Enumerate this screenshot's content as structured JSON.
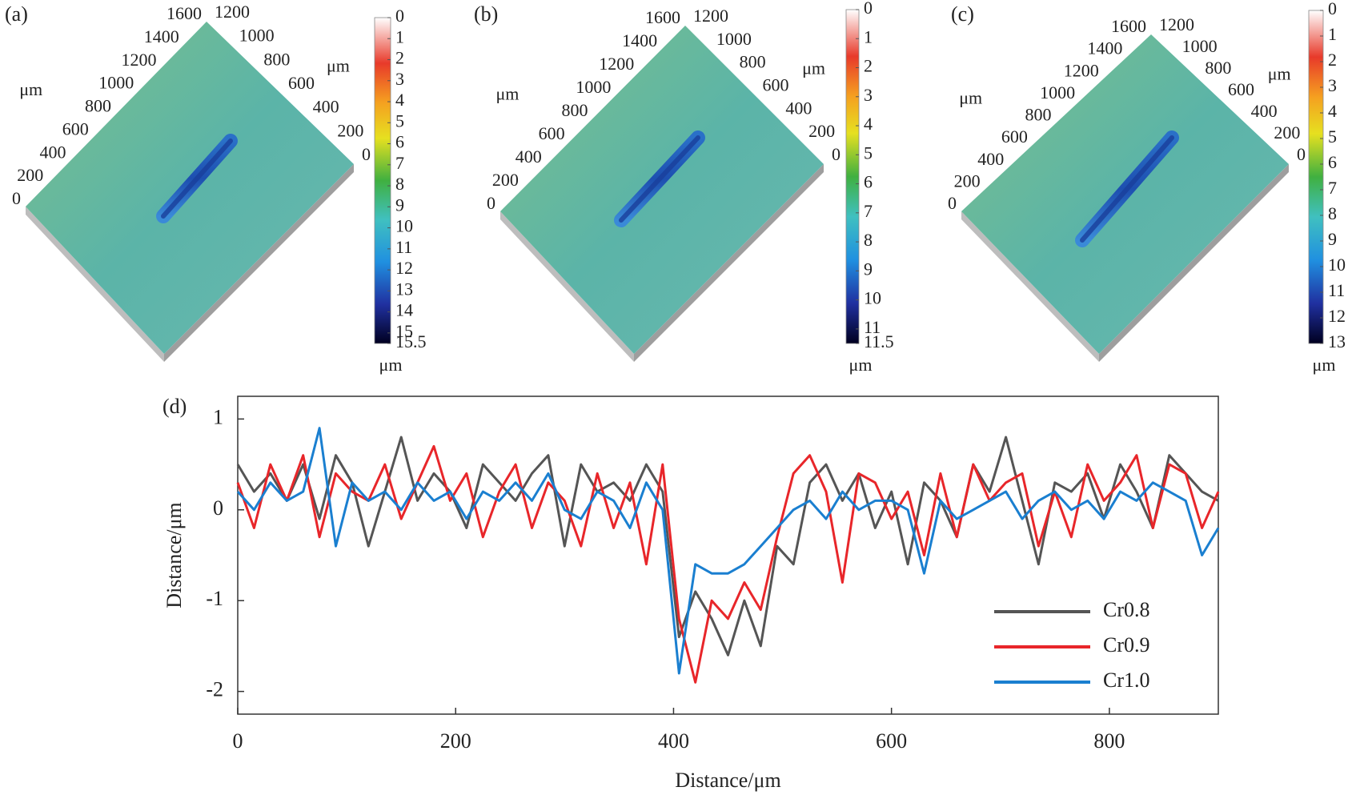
{
  "chart_data": [
    {
      "type": "surface",
      "panel_label": "(a)",
      "xlabel": "μm",
      "ylabel": "μm",
      "colorbar_label": "μm",
      "xlim": [
        0,
        1600
      ],
      "xticks": [
        0,
        200,
        400,
        600,
        800,
        1000,
        1200,
        1400,
        1600
      ],
      "ylim": [
        0,
        1200
      ],
      "yticks": [
        0,
        200,
        400,
        600,
        800,
        1000,
        1200
      ],
      "clim": [
        0,
        15.5
      ],
      "cticks": [
        0,
        1,
        2,
        3,
        4,
        5,
        6,
        7,
        8,
        9,
        10,
        11,
        12,
        13,
        14,
        15,
        15.5
      ]
    },
    {
      "type": "surface",
      "panel_label": "(b)",
      "xlabel": "μm",
      "ylabel": "μm",
      "colorbar_label": "μm",
      "xlim": [
        0,
        1600
      ],
      "xticks": [
        0,
        200,
        400,
        600,
        800,
        1000,
        1200,
        1400,
        1600
      ],
      "ylim": [
        0,
        1200
      ],
      "yticks": [
        0,
        200,
        400,
        600,
        800,
        1000,
        1200
      ],
      "clim": [
        0,
        11.5
      ],
      "cticks": [
        0,
        1,
        2,
        3,
        4,
        5,
        6,
        7,
        8,
        9,
        10,
        11,
        11.5
      ]
    },
    {
      "type": "surface",
      "panel_label": "(c)",
      "xlabel": "μm",
      "ylabel": "μm",
      "colorbar_label": "μm",
      "xlim": [
        0,
        1600
      ],
      "xticks": [
        0,
        200,
        400,
        600,
        800,
        1000,
        1200,
        1400,
        1600
      ],
      "ylim": [
        0,
        1200
      ],
      "yticks": [
        0,
        200,
        400,
        600,
        800,
        1000,
        1200
      ],
      "clim": [
        0,
        13
      ],
      "cticks": [
        0,
        1,
        2,
        3,
        4,
        5,
        6,
        7,
        8,
        9,
        10,
        11,
        12,
        13
      ]
    },
    {
      "type": "line",
      "panel_label": "(d)",
      "xlabel": "Distance/μm",
      "ylabel": "Distance/μm",
      "xlim": [
        0,
        900
      ],
      "xticks": [
        0,
        200,
        400,
        600,
        800
      ],
      "ylim": [
        -2.25,
        1.25
      ],
      "yticks": [
        -2,
        -1,
        0,
        1
      ],
      "legend": "lower right",
      "x": [
        0,
        15,
        30,
        45,
        60,
        75,
        90,
        105,
        120,
        135,
        150,
        165,
        180,
        195,
        210,
        225,
        240,
        255,
        270,
        285,
        300,
        315,
        330,
        345,
        360,
        375,
        390,
        405,
        420,
        435,
        450,
        465,
        480,
        495,
        510,
        525,
        540,
        555,
        570,
        585,
        600,
        615,
        630,
        645,
        660,
        675,
        690,
        705,
        720,
        735,
        750,
        765,
        780,
        795,
        810,
        825,
        840,
        855,
        870,
        885,
        900
      ],
      "series": [
        {
          "name": "Cr0.8",
          "color": "#555555",
          "values": [
            0.5,
            0.2,
            0.4,
            0.1,
            0.5,
            -0.1,
            0.6,
            0.3,
            -0.4,
            0.2,
            0.8,
            0.1,
            0.4,
            0.2,
            -0.2,
            0.5,
            0.3,
            0.1,
            0.4,
            0.6,
            -0.4,
            0.5,
            0.2,
            0.3,
            0.1,
            0.5,
            0.2,
            -1.4,
            -0.9,
            -1.2,
            -1.6,
            -1.0,
            -1.5,
            -0.4,
            -0.6,
            0.3,
            0.5,
            0.1,
            0.4,
            -0.2,
            0.2,
            -0.6,
            0.3,
            0.1,
            -0.3,
            0.5,
            0.2,
            0.8,
            0.1,
            -0.6,
            0.3,
            0.2,
            0.4,
            -0.1,
            0.5,
            0.2,
            -0.2,
            0.6,
            0.4,
            0.2,
            0.1
          ]
        },
        {
          "name": "Cr0.9",
          "color": "#e8262a",
          "values": [
            0.3,
            -0.2,
            0.5,
            0.1,
            0.6,
            -0.3,
            0.4,
            0.2,
            0.1,
            0.5,
            -0.1,
            0.3,
            0.7,
            0.1,
            0.4,
            -0.3,
            0.2,
            0.5,
            -0.2,
            0.3,
            0.1,
            -0.4,
            0.4,
            -0.2,
            0.3,
            -0.6,
            0.5,
            -1.2,
            -1.9,
            -1.0,
            -1.2,
            -0.8,
            -1.1,
            -0.3,
            0.4,
            0.6,
            0.2,
            -0.8,
            0.4,
            0.3,
            -0.1,
            0.2,
            -0.5,
            0.4,
            -0.3,
            0.5,
            0.1,
            0.3,
            0.4,
            -0.4,
            0.2,
            -0.3,
            0.5,
            0.1,
            0.3,
            0.6,
            -0.2,
            0.5,
            0.4,
            -0.2,
            0.2
          ]
        },
        {
          "name": "Cr1.0",
          "color": "#1a7fd0",
          "values": [
            0.2,
            0.0,
            0.3,
            0.1,
            0.2,
            0.9,
            -0.4,
            0.3,
            0.1,
            0.2,
            0.0,
            0.3,
            0.1,
            0.2,
            -0.1,
            0.2,
            0.1,
            0.3,
            0.1,
            0.4,
            0.0,
            -0.1,
            0.2,
            0.1,
            -0.2,
            0.3,
            0.0,
            -1.8,
            -0.6,
            -0.7,
            -0.7,
            -0.6,
            -0.4,
            -0.2,
            0.0,
            0.1,
            -0.1,
            0.2,
            0.0,
            0.1,
            0.1,
            0.0,
            -0.7,
            0.1,
            -0.1,
            0.0,
            0.1,
            0.2,
            -0.1,
            0.1,
            0.2,
            0.0,
            0.1,
            -0.1,
            0.2,
            0.1,
            0.3,
            0.2,
            0.1,
            -0.5,
            -0.2
          ]
        }
      ]
    }
  ]
}
